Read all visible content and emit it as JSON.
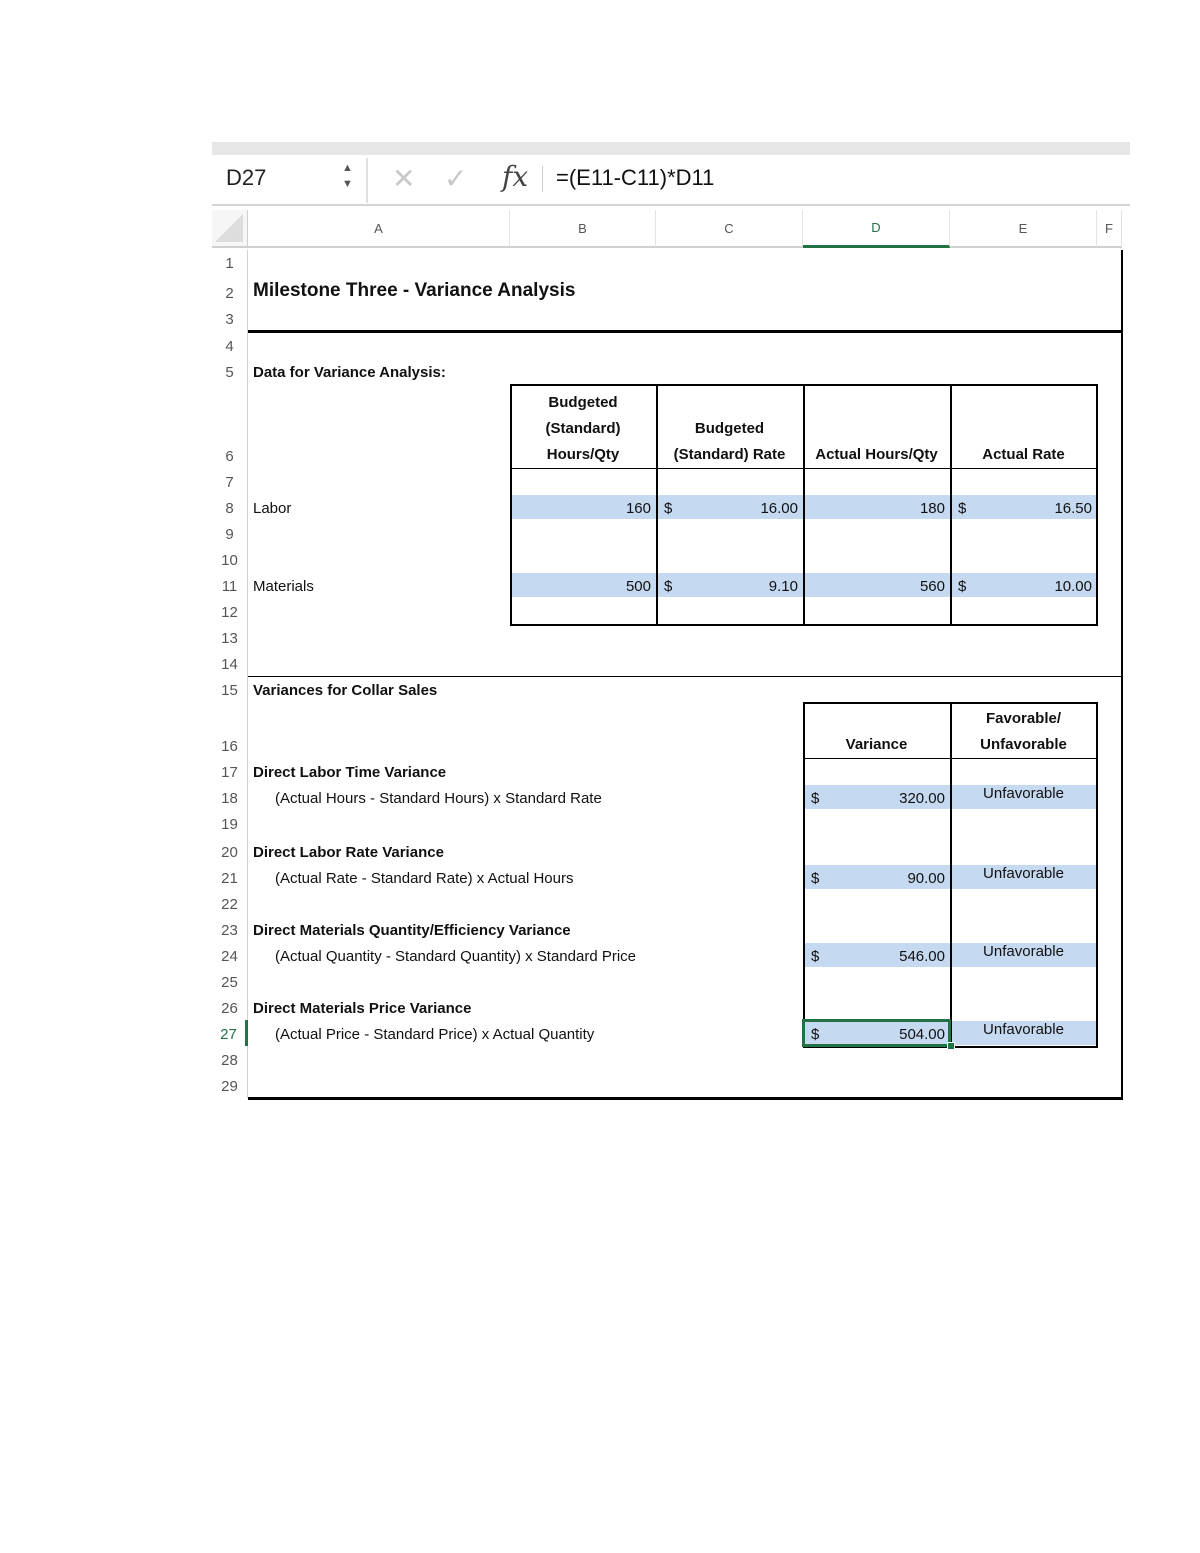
{
  "formula_bar": {
    "name_box": "D27",
    "formula": "=(E11-C11)*D11",
    "cancel_icon": "x-icon",
    "enter_icon": "check-icon",
    "function_icon": "fx"
  },
  "columns": [
    "A",
    "B",
    "C",
    "D",
    "E",
    "F"
  ],
  "active_column": "D",
  "rows": [
    1,
    2,
    3,
    4,
    5,
    6,
    7,
    8,
    9,
    10,
    11,
    12,
    13,
    14,
    15,
    16,
    17,
    18,
    19,
    20,
    21,
    22,
    23,
    24,
    25,
    26,
    27,
    28,
    29
  ],
  "active_row": 27,
  "selected_cell": "D27",
  "colors": {
    "accent": "#217346",
    "highlight_fill": "#c5d9f1"
  },
  "cells": [
    {
      "ref": "A2",
      "text": "Milestone Three - Variance Analysis"
    },
    {
      "ref": "A5",
      "text": "Data for Variance Analysis:"
    },
    {
      "ref": "B6",
      "text": "Budgeted (Standard) Hours/Qty"
    },
    {
      "ref": "C6",
      "text": "Budgeted (Standard) Rate"
    },
    {
      "ref": "D6",
      "text": "Actual Hours/Qty"
    },
    {
      "ref": "E6",
      "text": "Actual Rate"
    },
    {
      "ref": "A8",
      "text": "Labor"
    },
    {
      "ref": "B8",
      "text": "160"
    },
    {
      "ref": "C8",
      "currency": "$",
      "text": "16.00"
    },
    {
      "ref": "D8",
      "text": "180"
    },
    {
      "ref": "E8",
      "currency": "$",
      "text": "16.50"
    },
    {
      "ref": "A11",
      "text": "Materials"
    },
    {
      "ref": "B11",
      "text": "500"
    },
    {
      "ref": "C11",
      "currency": "$",
      "text": "9.10"
    },
    {
      "ref": "D11",
      "text": "560"
    },
    {
      "ref": "E11",
      "currency": "$",
      "text": "10.00"
    },
    {
      "ref": "A15",
      "text": "Variances for Collar Sales"
    },
    {
      "ref": "D16",
      "text": "Variance"
    },
    {
      "ref": "E16",
      "text": "Favorable/ Unfavorable"
    },
    {
      "ref": "A17",
      "text": "Direct Labor Time Variance"
    },
    {
      "ref": "A18",
      "text": "(Actual Hours - Standard Hours) x Standard Rate"
    },
    {
      "ref": "D18",
      "currency": "$",
      "text": "320.00"
    },
    {
      "ref": "E18",
      "text": "Unfavorable"
    },
    {
      "ref": "A20",
      "text": "Direct Labor Rate Variance"
    },
    {
      "ref": "A21",
      "text": "(Actual Rate - Standard Rate) x Actual Hours"
    },
    {
      "ref": "D21",
      "currency": "$",
      "text": "90.00"
    },
    {
      "ref": "E21",
      "text": "Unfavorable"
    },
    {
      "ref": "A23",
      "text": "Direct Materials Quantity/Efficiency Variance"
    },
    {
      "ref": "A24",
      "text": "(Actual Quantity - Standard Quantity) x Standard Price"
    },
    {
      "ref": "D24",
      "currency": "$",
      "text": "546.00"
    },
    {
      "ref": "E24",
      "text": "Unfavorable"
    },
    {
      "ref": "A26",
      "text": "Direct Materials Price Variance"
    },
    {
      "ref": "A27",
      "text": "(Actual Price - Standard Price) x Actual Quantity"
    },
    {
      "ref": "D27",
      "currency": "$",
      "text": "504.00"
    },
    {
      "ref": "E27",
      "text": "Unfavorable"
    }
  ]
}
